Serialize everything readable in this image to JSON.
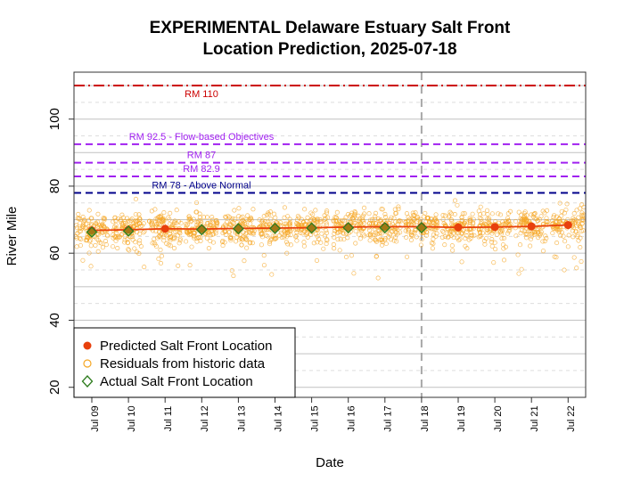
{
  "chart_data": {
    "type": "scatter",
    "title_line1": "EXPERIMENTAL Delaware Estuary Salt Front",
    "title_line2": "Location Prediction, 2025-07-18",
    "xlabel": "Date",
    "ylabel": "River Mile",
    "ylim": [
      17,
      114
    ],
    "yticks": [
      20,
      40,
      60,
      80,
      100
    ],
    "categories": [
      "Jul 09",
      "Jul 10",
      "Jul 11",
      "Jul 12",
      "Jul 13",
      "Jul 14",
      "Jul 15",
      "Jul 16",
      "Jul 17",
      "Jul 18",
      "Jul 19",
      "Jul 20",
      "Jul 21",
      "Jul 22"
    ],
    "forecast_date": "Jul 18",
    "reference_lines": [
      {
        "label": "RM 110",
        "value": 110,
        "color": "#cc0000",
        "style": "dashdot"
      },
      {
        "label": "RM 92.5 - Flow-based Objectives",
        "value": 92.5,
        "color": "#a020f0",
        "style": "dashed"
      },
      {
        "label": "RM 87",
        "value": 87,
        "color": "#a020f0",
        "style": "dashed"
      },
      {
        "label": "RM 82.9",
        "value": 82.9,
        "color": "#a020f0",
        "style": "dashed"
      },
      {
        "label": "RM 78 - Above Normal",
        "value": 78,
        "color": "#00008b",
        "style": "dashed"
      }
    ],
    "series": [
      {
        "name": "Predicted Salt Front Location",
        "color": "#e8400c",
        "values": [
          66.8,
          67.0,
          67.3,
          67.2,
          67.4,
          67.5,
          67.6,
          67.8,
          67.9,
          67.9,
          67.7,
          67.8,
          68.0,
          68.4
        ]
      },
      {
        "name": "Residuals from historic data",
        "color": "#f5a623",
        "values": []
      },
      {
        "name": "Actual Salt Front Location",
        "color": "#2e7d1e",
        "values": [
          66.3,
          66.6,
          null,
          67.0,
          67.3,
          67.4,
          67.5,
          67.6,
          67.6,
          67.6,
          null,
          null,
          null,
          null
        ]
      }
    ],
    "grid": true,
    "legend_position": "bottom-left"
  }
}
